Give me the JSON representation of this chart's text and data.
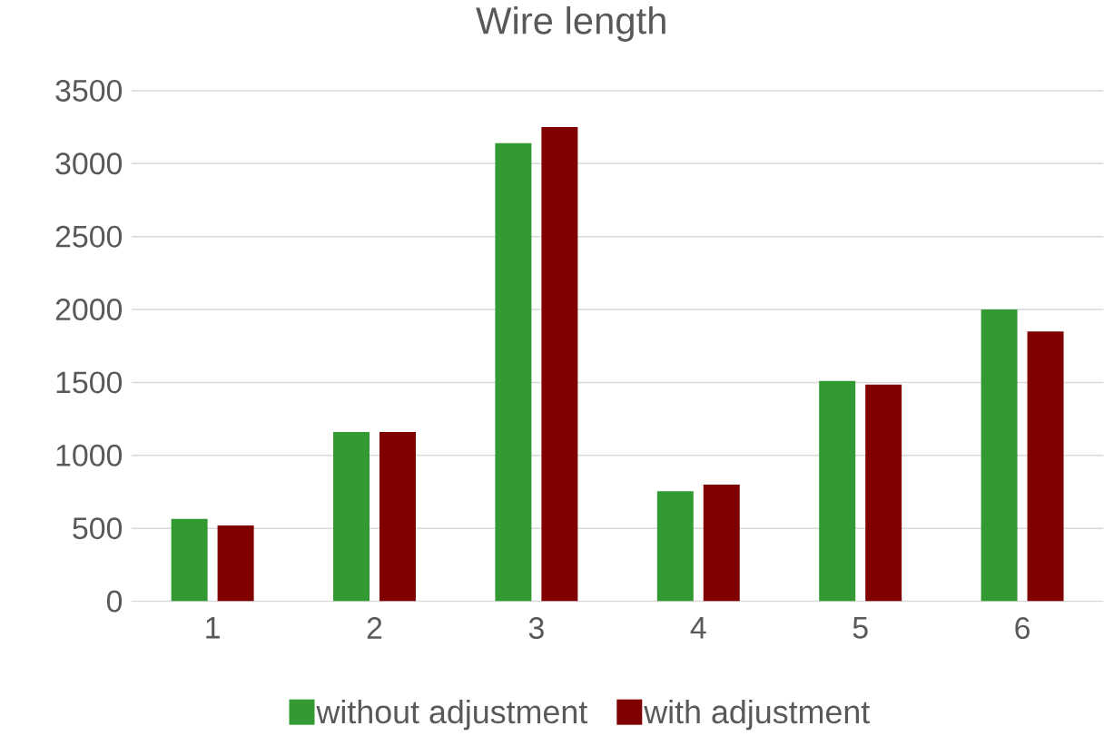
{
  "chart_data": {
    "type": "bar",
    "title": "Wire length",
    "categories": [
      "1",
      "2",
      "3",
      "4",
      "5",
      "6"
    ],
    "series": [
      {
        "name": "without adjustment",
        "color": "#339933",
        "values": [
          565,
          1160,
          3140,
          755,
          1510,
          2000
        ]
      },
      {
        "name": "with adjustment",
        "color": "#800000",
        "values": [
          520,
          1160,
          3250,
          800,
          1485,
          1850
        ]
      }
    ],
    "ylim": [
      0,
      3500
    ],
    "yticks": [
      0,
      500,
      1000,
      1500,
      2000,
      2500,
      3000,
      3500
    ],
    "grid": "y",
    "legend": "bottom"
  }
}
